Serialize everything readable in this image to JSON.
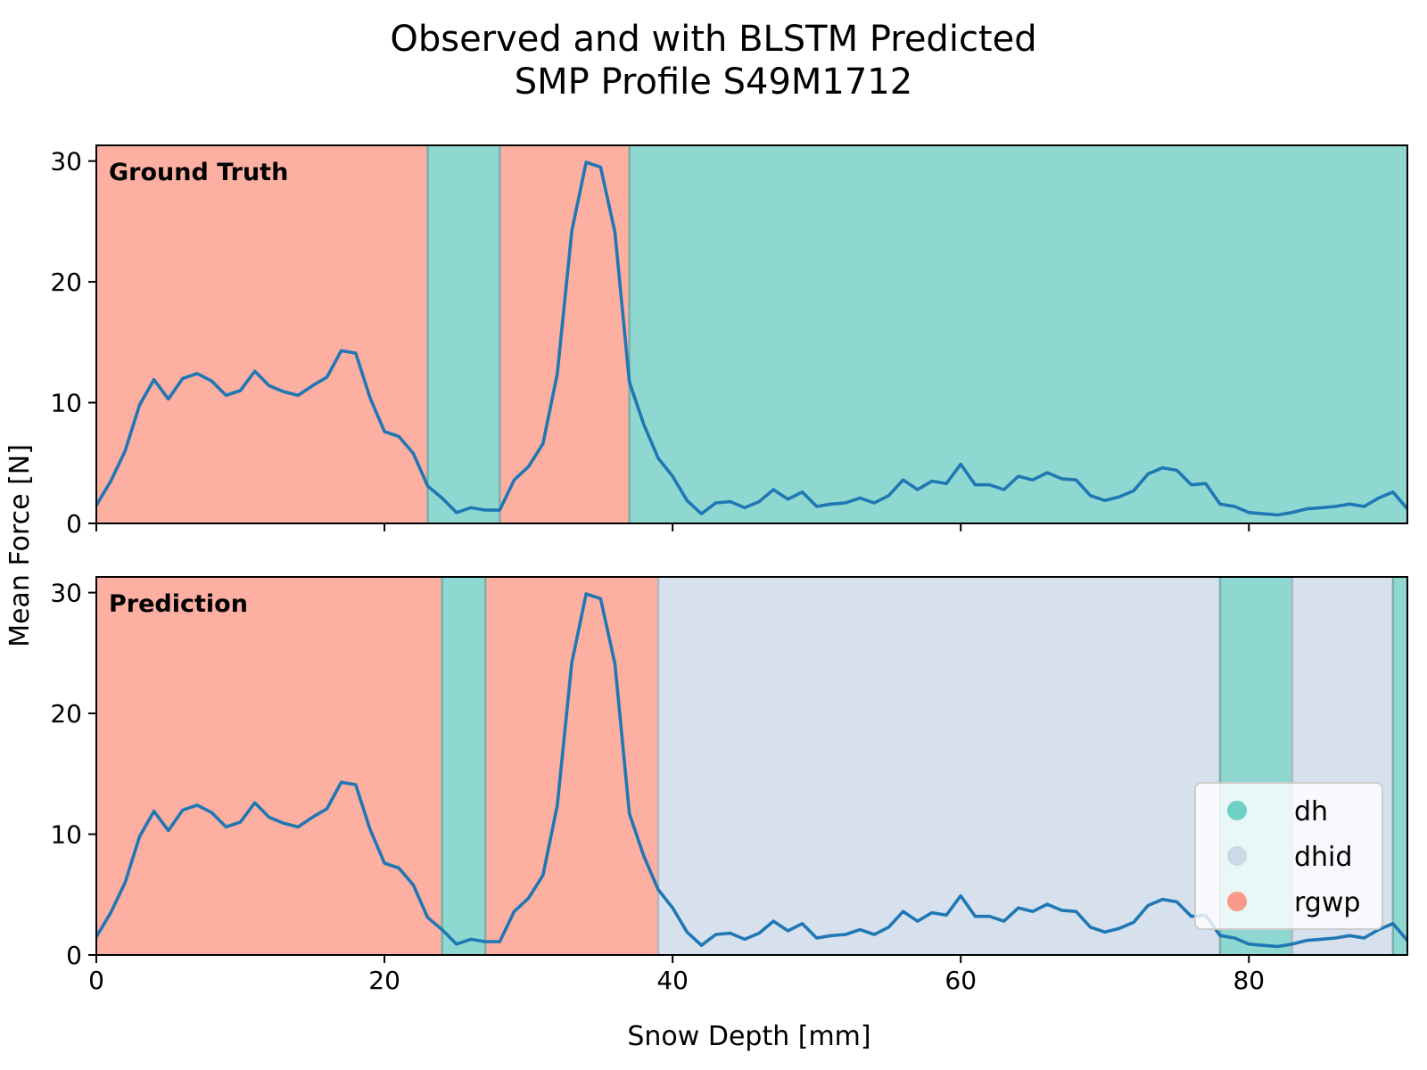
{
  "title_line1": "Observed and with BLSTM Predicted",
  "title_line2": "SMP Profile S49M1712",
  "colors": {
    "line": "#1f77b4",
    "dh": "#8fd8d2",
    "dhid": "#d7e1ed",
    "rgwp": "#fdafa2",
    "dh_marker": "#6fd0c4",
    "dhid_marker": "#cdd9e8",
    "rgwp_marker": "#f99a8a"
  },
  "chart_data": {
    "type": "line",
    "xlabel": "Snow Depth [mm]",
    "ylabel": "Mean Force [N]",
    "xlim": [
      0,
      91
    ],
    "ylim": [
      0,
      31.3
    ],
    "xticks": [
      0,
      20,
      40,
      60,
      80
    ],
    "yticks": [
      0,
      10,
      20,
      30
    ],
    "grid": false,
    "legend": {
      "location": "bottom-right of lower panel",
      "entries": [
        {
          "label": "dh",
          "color_key": "dh_marker"
        },
        {
          "label": "dhid",
          "color_key": "dhid_marker"
        },
        {
          "label": "rgwp",
          "color_key": "rgwp_marker"
        }
      ]
    },
    "x": [
      0,
      1,
      2,
      3,
      4,
      5,
      6,
      7,
      8,
      9,
      10,
      11,
      12,
      13,
      14,
      15,
      16,
      17,
      18,
      19,
      20,
      21,
      22,
      23,
      24,
      25,
      26,
      27,
      28,
      29,
      30,
      31,
      32,
      33,
      34,
      35,
      36,
      37,
      38,
      39,
      40,
      41,
      42,
      43,
      44,
      45,
      46,
      47,
      48,
      49,
      50,
      51,
      52,
      53,
      54,
      55,
      56,
      57,
      58,
      59,
      60,
      61,
      62,
      63,
      64,
      65,
      66,
      67,
      68,
      69,
      70,
      71,
      72,
      73,
      74,
      75,
      76,
      77,
      78,
      79,
      80,
      81,
      82,
      83,
      84,
      85,
      86,
      87,
      88,
      89,
      90,
      91
    ],
    "y": [
      1.5,
      3.5,
      6.0,
      9.8,
      11.9,
      10.3,
      12.0,
      12.4,
      11.8,
      10.6,
      11.0,
      12.6,
      11.4,
      10.9,
      10.6,
      11.4,
      12.1,
      14.3,
      14.1,
      10.4,
      7.6,
      7.2,
      5.8,
      3.1,
      2.1,
      0.9,
      1.3,
      1.1,
      1.1,
      3.6,
      4.7,
      6.6,
      12.4,
      24.2,
      29.9,
      29.5,
      24.1,
      11.7,
      8.2,
      5.4,
      3.9,
      1.9,
      0.8,
      1.7,
      1.8,
      1.3,
      1.8,
      2.8,
      2.0,
      2.6,
      1.4,
      1.6,
      1.7,
      2.1,
      1.7,
      2.3,
      3.6,
      2.8,
      3.5,
      3.3,
      4.9,
      3.2,
      3.2,
      2.8,
      3.9,
      3.6,
      4.2,
      3.7,
      3.6,
      2.3,
      1.9,
      2.2,
      2.7,
      4.1,
      4.6,
      4.4,
      3.2,
      3.3,
      1.6,
      1.4,
      0.9,
      0.8,
      0.7,
      0.9,
      1.2,
      1.3,
      1.4,
      1.6,
      1.4,
      2.1,
      2.6,
      1.2
    ],
    "panels": [
      {
        "name": "ground-truth",
        "label": "Ground Truth",
        "segments": [
          {
            "class": "rgwp",
            "from": 0,
            "to": 23
          },
          {
            "class": "dh",
            "from": 23,
            "to": 28
          },
          {
            "class": "rgwp",
            "from": 28,
            "to": 37
          },
          {
            "class": "dh",
            "from": 37,
            "to": 91
          }
        ]
      },
      {
        "name": "prediction",
        "label": "Prediction",
        "segments": [
          {
            "class": "rgwp",
            "from": 0,
            "to": 24
          },
          {
            "class": "dh",
            "from": 24,
            "to": 27
          },
          {
            "class": "rgwp",
            "from": 27,
            "to": 39
          },
          {
            "class": "dhid",
            "from": 39,
            "to": 78
          },
          {
            "class": "dh",
            "from": 78,
            "to": 83
          },
          {
            "class": "dhid",
            "from": 83,
            "to": 90
          },
          {
            "class": "dh",
            "from": 90,
            "to": 91
          }
        ]
      }
    ]
  }
}
